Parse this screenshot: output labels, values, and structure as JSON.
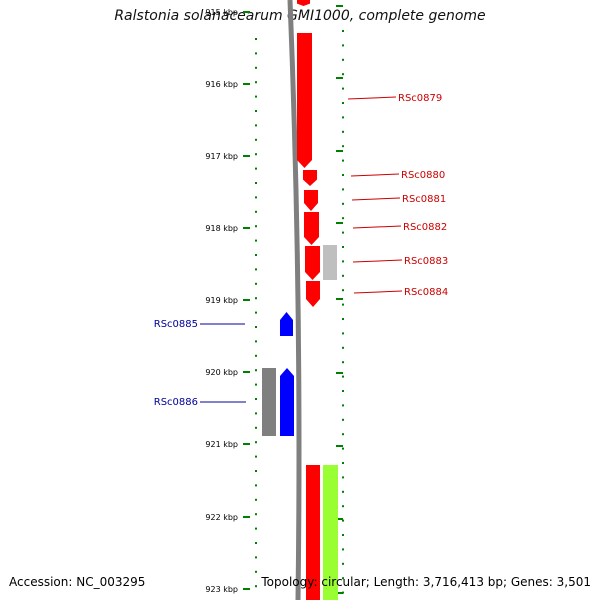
{
  "title": "Ralstonia solanacearum GMI1000, complete genome",
  "accession": "Accession: NC_003295",
  "topology_text": "Topology: circular; Length: 3,716,413 bp; Genes: 3,501",
  "colors": {
    "forward_cds": "#ff0000",
    "reverse_cds": "#0000ff",
    "forward_other": "#bfbfbf",
    "reverse_other": "#7f7f7f",
    "rna": "#99ff33",
    "backbone": "#7f7f7f",
    "ticks": "#008000",
    "label_forward": "#cc0000",
    "label_reverse": "#000099"
  },
  "scale": {
    "labels": [
      "915 kbp",
      "916 kbp",
      "917 kbp",
      "918 kbp",
      "919 kbp",
      "920 kbp",
      "921 kbp",
      "922 kbp",
      "923 kbp"
    ]
  },
  "genes": [
    {
      "label": "RSc0879",
      "strand": "forward"
    },
    {
      "label": "RSc0880",
      "strand": "forward"
    },
    {
      "label": "RSc0881",
      "strand": "forward"
    },
    {
      "label": "RSc0882",
      "strand": "forward"
    },
    {
      "label": "RSc0883",
      "strand": "forward"
    },
    {
      "label": "RSc0884",
      "strand": "forward"
    },
    {
      "label": "RSc0885",
      "strand": "reverse"
    },
    {
      "label": "RSc0886",
      "strand": "reverse"
    }
  ]
}
